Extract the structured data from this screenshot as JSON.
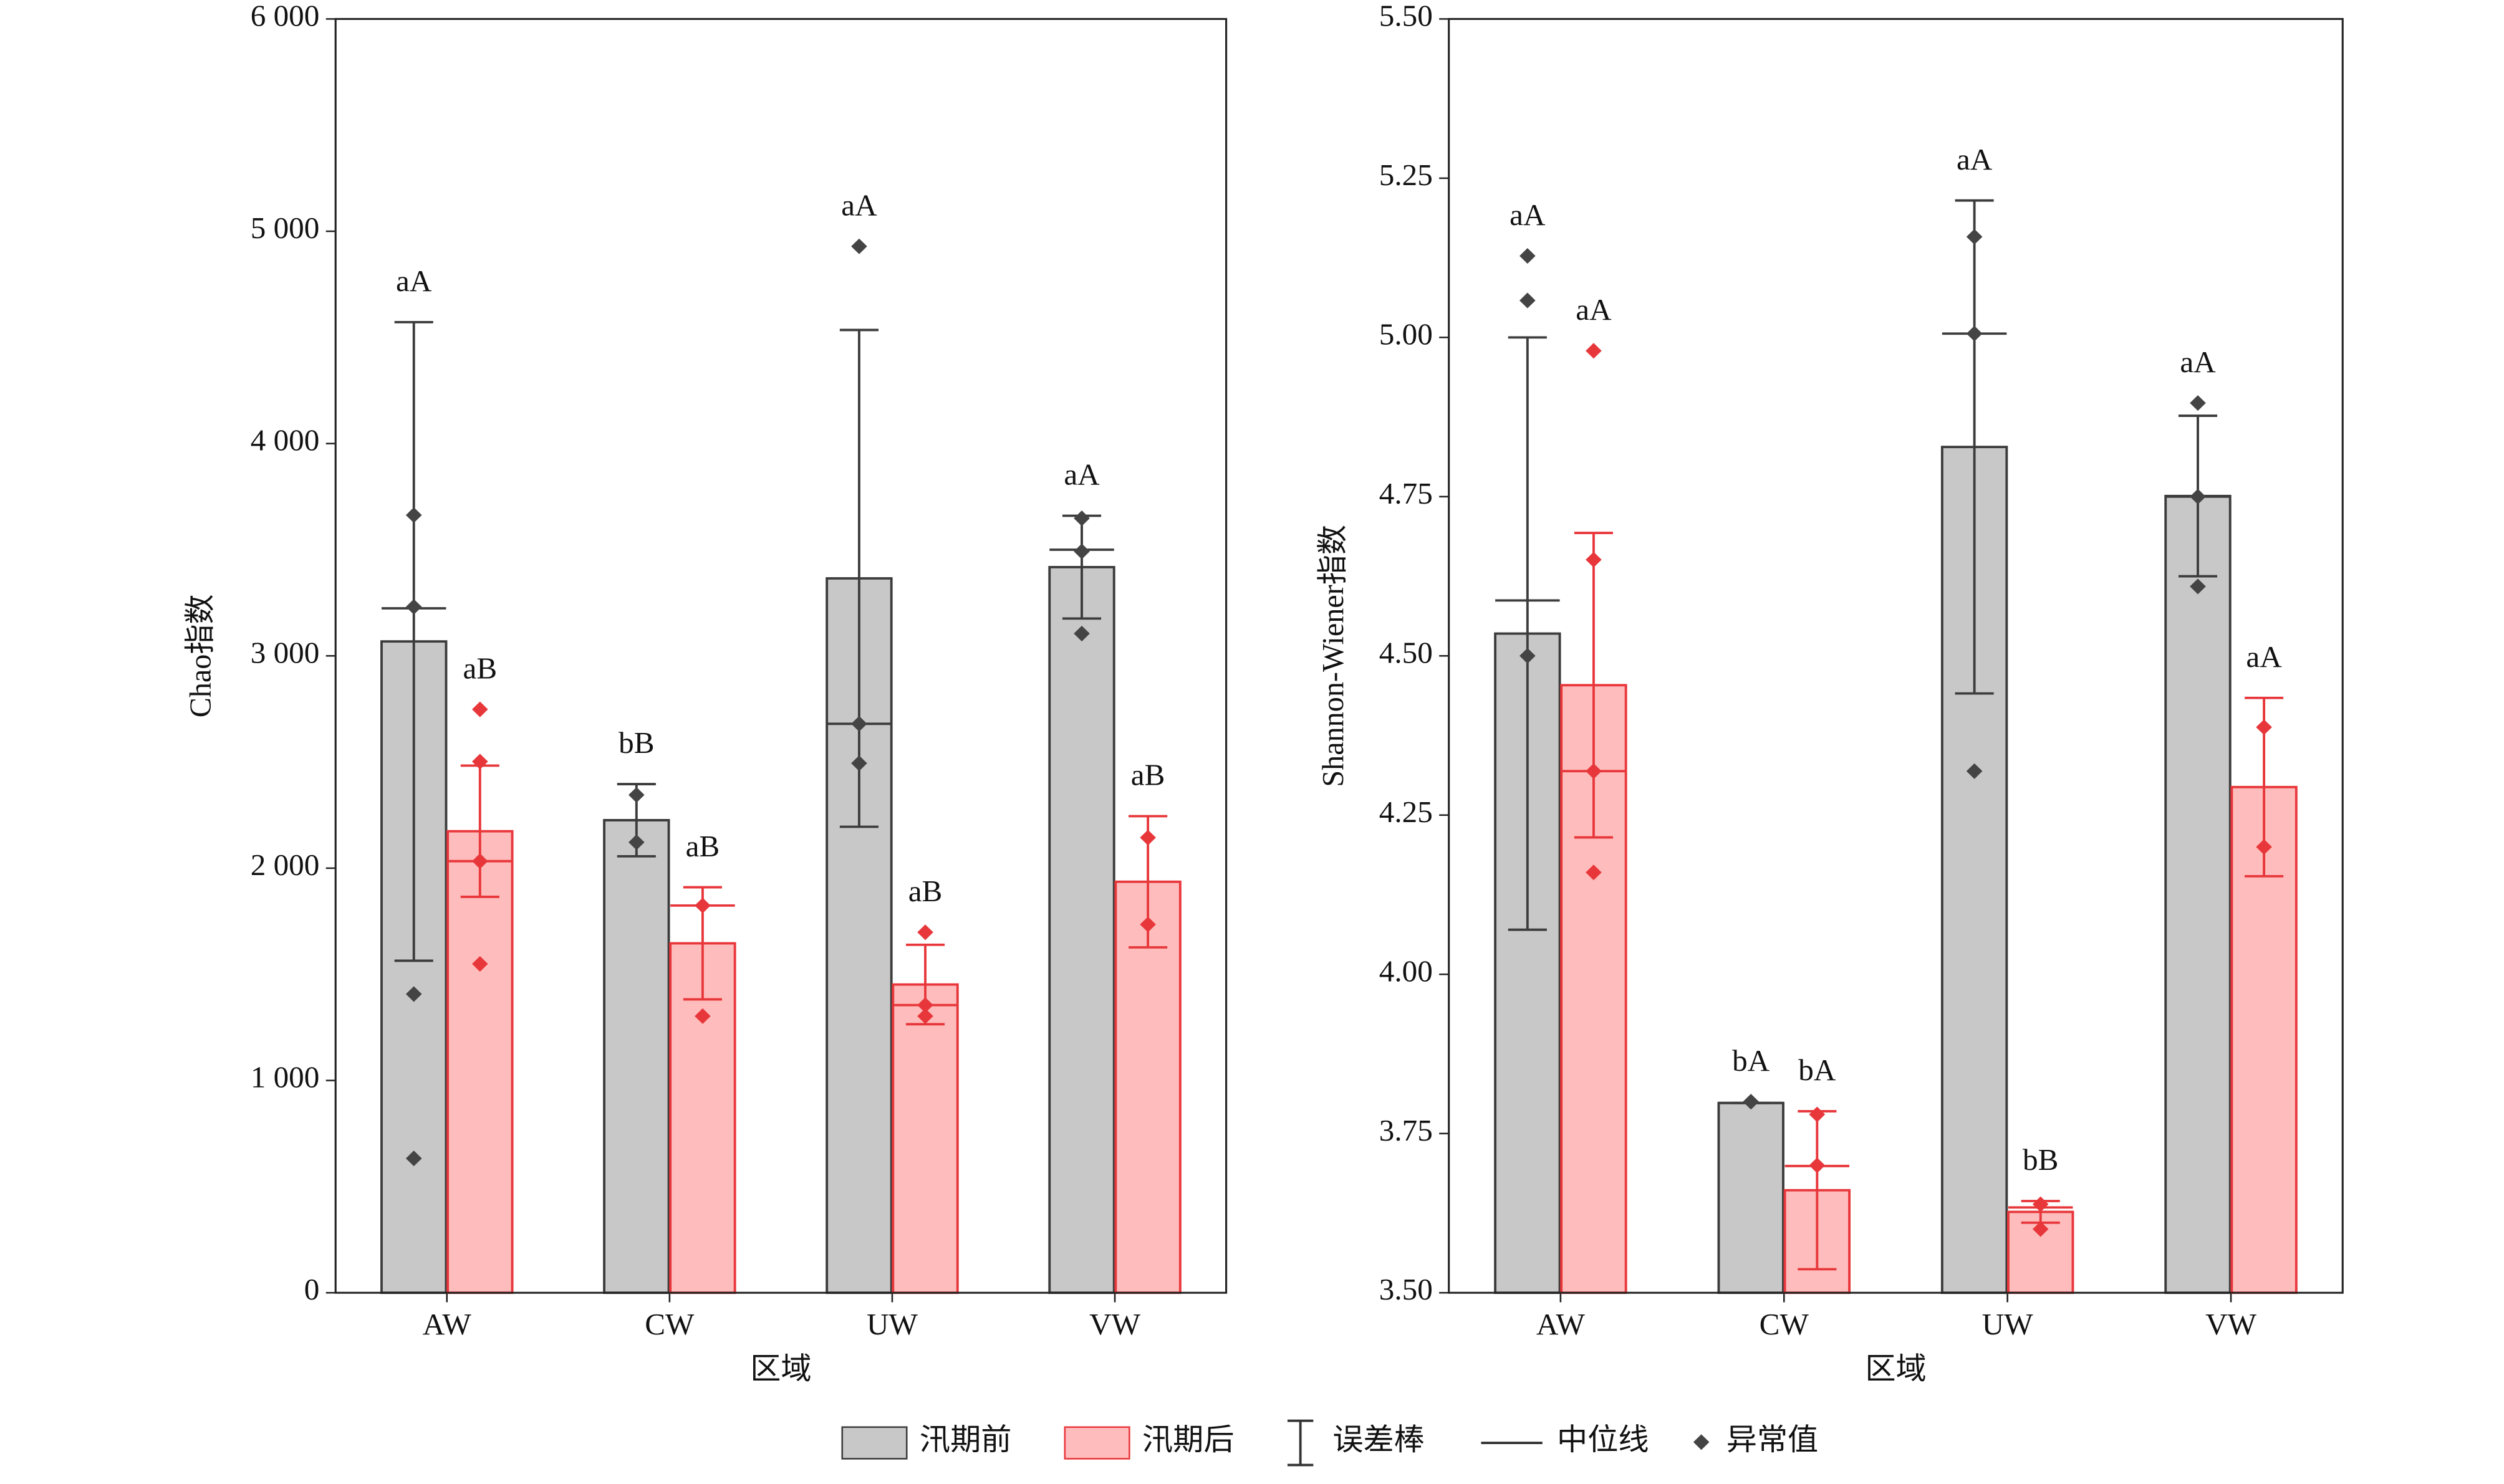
{
  "chart_data": [
    {
      "type": "bar",
      "ylabel": "Chao指数",
      "xlabel": "区域",
      "categories": [
        "AW",
        "CW",
        "UW",
        "VW"
      ],
      "ylim": [
        0,
        6000
      ],
      "yticks": [
        0,
        {
          "value": 1000,
          "label": "1 000"
        },
        {
          "value": 2000,
          "label": "2 000"
        },
        {
          "value": 3000,
          "label": "3 000"
        },
        {
          "value": 4000,
          "label": "4 000"
        },
        {
          "value": 5000,
          "label": "5 000"
        },
        {
          "value": 6000,
          "label": "6 000"
        }
      ],
      "series": [
        {
          "name": "汛期前",
          "color": "#c8c8c8",
          "edge": "#3c3c3c",
          "values": [
            3068,
            2226,
            3365,
            3418
          ],
          "errors": [
            1504,
            170,
            1170,
            242
          ],
          "medians": [
            3224,
            2226,
            2680,
            3500
          ],
          "outliers": [
            [
              3663,
              3231,
              1407,
              633
            ],
            [
              2345,
              2122
            ],
            [
              4929,
              2680,
              2494
            ],
            [
              3648,
              3492,
              3105
            ]
          ],
          "labels": [
            "aA",
            "bB",
            "aA",
            "aA"
          ]
        },
        {
          "name": "汛期后",
          "color": "#ffbcbc",
          "edge": "#e8373b",
          "values": [
            2174,
            1646,
            1452,
            1936
          ],
          "errors": [
            309,
            264,
            187,
            309
          ],
          "medians": [
            2033,
            1824,
            1355,
            null
          ],
          "outliers": [
            [
              2748,
              2502,
              2033,
              1549
            ],
            [
              1824,
              1303
            ],
            [
              1698,
              1355,
              1303
            ],
            [
              2144,
              1735
            ]
          ],
          "labels": [
            "aB",
            "aB",
            "aB",
            "aB"
          ]
        }
      ]
    },
    {
      "type": "bar",
      "ylabel": "Shannon-Wiener指数",
      "xlabel": "区域",
      "categories": [
        "AW",
        "CW",
        "UW",
        "VW"
      ],
      "ylim": [
        3.5,
        5.5
      ],
      "yticks": [
        {
          "value": 3.5,
          "label": "3.50"
        },
        3.75,
        {
          "value": 4,
          "label": "4.00"
        },
        4.25,
        {
          "value": 4.5,
          "label": "4.50"
        },
        4.75,
        {
          "value": 5,
          "label": "5.00"
        },
        5.25,
        {
          "value": 5.5,
          "label": "5.50"
        }
      ],
      "series": [
        {
          "name": "汛期前",
          "color": "#c8c8c8",
          "edge": "#3c3c3c",
          "values": [
            4.535,
            3.798,
            4.828,
            4.751
          ],
          "errors": [
            0.465,
            0,
            0.387,
            0.126
          ],
          "medians": [
            4.587,
            3.798,
            5.006,
            4.75
          ],
          "outliers": [
            [
              5.128,
              5.058,
              4.5
            ],
            [
              3.8,
              3.8
            ],
            [
              5.158,
              5.006,
              4.319
            ],
            [
              4.897,
              4.75,
              4.609
            ]
          ],
          "labels": [
            "aA",
            "bA",
            "aA",
            "aA"
          ]
        },
        {
          "name": "汛期后",
          "color": "#ffbcbc",
          "edge": "#e8373b",
          "values": [
            4.454,
            3.661,
            3.627,
            4.294
          ],
          "errors": [
            0.239,
            0.124,
            0.017,
            0.14
          ],
          "medians": [
            4.319,
            3.699,
            3.634,
            null
          ],
          "outliers": [
            [
              4.979,
              4.651,
              4.319,
              4.16
            ],
            [
              3.78,
              3.7
            ],
            [
              3.639,
              3.6
            ],
            [
              4.388,
              4.2
            ]
          ],
          "labels": [
            "aA",
            "bA",
            "bB",
            "aA"
          ]
        }
      ]
    }
  ],
  "legend": {
    "error_bar": "误差棒",
    "median": "中位线",
    "outlier": "异常值"
  }
}
